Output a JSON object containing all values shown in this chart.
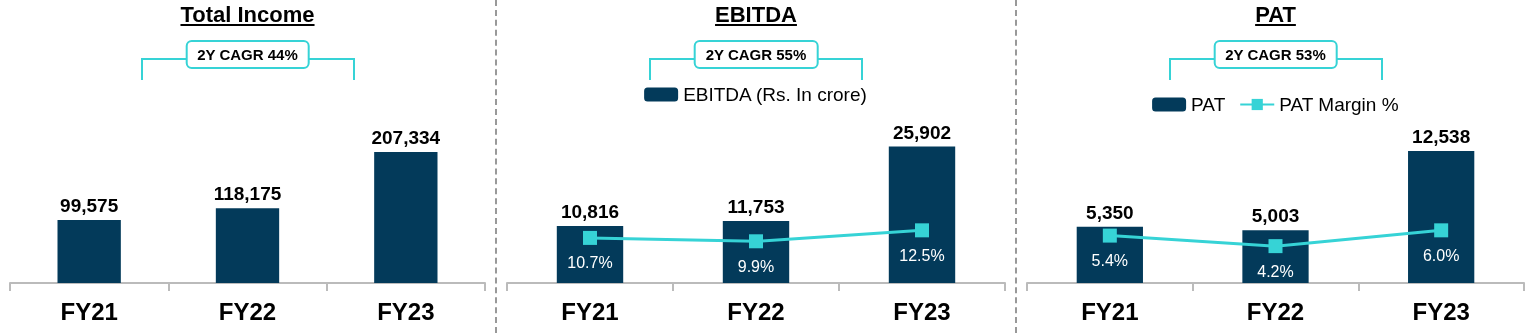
{
  "chart_data": [
    {
      "type": "bar",
      "title": "Total Income",
      "annotations": [
        "2Y CAGR 44%"
      ],
      "categories": [
        "FY21",
        "FY22",
        "FY23"
      ],
      "tick_labels": "x",
      "grid": false,
      "series": [
        {
          "color": "#033a5a",
          "values": [
            99575,
            118175,
            207334
          ],
          "value_labels": [
            "99,575",
            "118,175",
            "207,334"
          ]
        }
      ]
    },
    {
      "type": "bar",
      "title": "EBITDA",
      "annotations": [
        "2Y CAGR 55%"
      ],
      "categories": [
        "FY21",
        "FY22",
        "FY23"
      ],
      "tick_labels": "x",
      "grid": false,
      "legend": "top",
      "series": [
        {
          "name": "EBITDA (Rs. In crore)",
          "color": "#033a5a",
          "values": [
            10816,
            11753,
            25902
          ],
          "value_labels": [
            "10,816",
            "11,753",
            "25,902"
          ]
        },
        {
          "type": "line",
          "axis": "y2",
          "marker": "square",
          "color": "#36d3d6",
          "values": [
            10.7,
            9.9,
            12.5
          ],
          "value_labels": [
            "10.7%",
            "9.9%",
            "12.5%"
          ]
        }
      ]
    },
    {
      "type": "bar",
      "title": "PAT",
      "annotations": [
        "2Y CAGR 53%"
      ],
      "categories": [
        "FY21",
        "FY22",
        "FY23"
      ],
      "tick_labels": "x",
      "grid": false,
      "legend": "top",
      "series": [
        {
          "name": "PAT",
          "color": "#033a5a",
          "values": [
            5350,
            5003,
            12538
          ],
          "value_labels": [
            "5,350",
            "5,003",
            "12,538"
          ]
        },
        {
          "type": "line",
          "name": "PAT Margin %",
          "axis": "y2",
          "marker": "square",
          "color": "#36d3d6",
          "values": [
            5.4,
            4.2,
            6.0
          ],
          "value_labels": [
            "5.4%",
            "4.2%",
            "6.0%"
          ]
        }
      ]
    }
  ]
}
